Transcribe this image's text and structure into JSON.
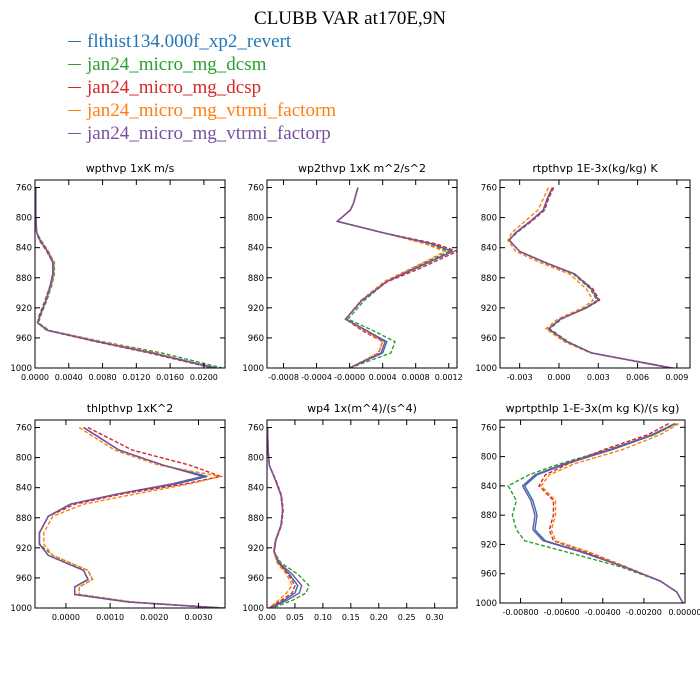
{
  "title": "CLUBB VAR at170E,9N",
  "legend": [
    {
      "label": "flthist134.000f_xp2_revert",
      "color": "#1f77b4"
    },
    {
      "label": "jan24_micro_mg_dcsm",
      "color": "#2ca02c"
    },
    {
      "label": "jan24_micro_mg_dcsp",
      "color": "#d62728"
    },
    {
      "label": "jan24_micro_mg_vtrmi_factorm",
      "color": "#ff7f0e"
    },
    {
      "label": "jan24_micro_mg_vtrmi_factorp",
      "color": "#7b4fa0"
    }
  ],
  "chart_data": [
    {
      "type": "line",
      "title": "wpthvp  1xK m/s",
      "xlim": [
        0,
        0.0225
      ],
      "ylim": [
        750,
        1000
      ],
      "y_reversed": true,
      "xticks": [
        0,
        0.004,
        0.008,
        0.012,
        0.016,
        0.02
      ],
      "xtick_labels": [
        "0.0000",
        "0.0040",
        "0.0080",
        "0.0120",
        "0.0160",
        "0.0200"
      ],
      "yticks": [
        760,
        800,
        840,
        880,
        920,
        960,
        1000
      ],
      "y": [
        760,
        780,
        800,
        820,
        830,
        845,
        860,
        875,
        890,
        910,
        930,
        940,
        950,
        965,
        980,
        1000
      ],
      "series": [
        {
          "color": "#1f77b4",
          "dash": "solid",
          "x": [
            0.0001,
            0.0001,
            0.0001,
            0.0002,
            0.0006,
            0.0015,
            0.0022,
            0.0022,
            0.0019,
            0.0013,
            0.0006,
            0.0003,
            0.0015,
            0.0075,
            0.014,
            0.0215
          ]
        },
        {
          "color": "#2ca02c",
          "dash": "dashed",
          "x": [
            0.0001,
            0.0001,
            0.0001,
            0.0002,
            0.0007,
            0.0016,
            0.0023,
            0.0023,
            0.002,
            0.0014,
            0.0007,
            0.0004,
            0.0017,
            0.008,
            0.015,
            0.0222
          ]
        },
        {
          "color": "#d62728",
          "dash": "dashed",
          "x": [
            0.0001,
            0.0001,
            0.0001,
            0.0002,
            0.0005,
            0.0014,
            0.0021,
            0.0021,
            0.0018,
            0.0012,
            0.0005,
            0.0003,
            0.0014,
            0.0072,
            0.0135,
            0.021
          ]
        },
        {
          "color": "#ff7f0e",
          "dash": "dashed",
          "x": [
            0.0001,
            0.0001,
            0.0001,
            0.0002,
            0.0006,
            0.0016,
            0.0022,
            0.0022,
            0.0019,
            0.0013,
            0.0006,
            0.0003,
            0.0016,
            0.0078,
            0.0142,
            0.0212
          ]
        },
        {
          "color": "#7b4fa0",
          "dash": "solid",
          "x": [
            0.0001,
            0.0001,
            0.0001,
            0.0002,
            0.0006,
            0.0015,
            0.0021,
            0.0021,
            0.0018,
            0.0013,
            0.0006,
            0.0003,
            0.0015,
            0.0074,
            0.0138,
            0.0212
          ]
        }
      ]
    },
    {
      "type": "line",
      "title": "wp2thvp  1xK m^2/s^2",
      "xlim": [
        -0.001,
        0.0013
      ],
      "ylim": [
        750,
        1000
      ],
      "y_reversed": true,
      "xticks": [
        -0.0008,
        -0.0004,
        0,
        0.0004,
        0.0008,
        0.0012
      ],
      "xtick_labels": [
        "-0.0008",
        "-0.0004",
        "-0.0000",
        "0.0004",
        "0.0008",
        "0.0012"
      ],
      "yticks": [
        760,
        800,
        840,
        880,
        920,
        960,
        1000
      ],
      "y": [
        760,
        780,
        790,
        805,
        820,
        835,
        845,
        855,
        870,
        885,
        910,
        935,
        950,
        965,
        980,
        1000
      ],
      "series": [
        {
          "color": "#1f77b4",
          "dash": "solid",
          "x": [
            0.0001,
            5e-05,
            1e-05,
            -0.00015,
            0.0004,
            0.001,
            0.00125,
            0.00105,
            0.00075,
            0.00045,
            0.00015,
            -5e-05,
            0.0002,
            0.00045,
            0.0004,
            0.0
          ]
        },
        {
          "color": "#2ca02c",
          "dash": "dashed",
          "x": [
            0.0001,
            5e-05,
            1e-05,
            -0.00015,
            0.0004,
            0.00095,
            0.0012,
            0.001,
            0.00072,
            0.00045,
            0.00018,
            -2e-05,
            0.00028,
            0.00055,
            0.0005,
            0.0
          ]
        },
        {
          "color": "#d62728",
          "dash": "dashed",
          "x": [
            0.0001,
            5e-05,
            1e-05,
            -0.00015,
            0.0004,
            0.00105,
            0.0013,
            0.0011,
            0.0008,
            0.00046,
            0.00014,
            -5e-05,
            0.00015,
            0.0004,
            0.00035,
            0.0
          ]
        },
        {
          "color": "#ff7f0e",
          "dash": "dashed",
          "x": [
            0.0001,
            5e-05,
            1e-05,
            -0.00015,
            0.0004,
            0.00092,
            0.00115,
            0.00098,
            0.0007,
            0.00042,
            0.00014,
            -5e-05,
            0.00018,
            0.0004,
            0.00035,
            0.0
          ]
        },
        {
          "color": "#7b4fa0",
          "dash": "solid",
          "x": [
            0.0001,
            5e-05,
            1e-05,
            -0.00015,
            0.0004,
            0.001,
            0.00124,
            0.00104,
            0.00074,
            0.00045,
            0.00015,
            -5e-05,
            0.0002,
            0.00043,
            0.00038,
            0.0
          ]
        }
      ]
    },
    {
      "type": "line",
      "title": "rtpthvp  1E-3x(kg/kg) K",
      "xlim": [
        -0.0045,
        0.01
      ],
      "ylim": [
        750,
        1000
      ],
      "y_reversed": true,
      "xticks": [
        -0.003,
        0,
        0.003,
        0.006,
        0.009
      ],
      "xtick_labels": [
        "-0.003",
        "0.000",
        "0.003",
        "0.006",
        "0.009"
      ],
      "yticks": [
        760,
        800,
        840,
        880,
        920,
        960,
        1000
      ],
      "y": [
        760,
        775,
        790,
        805,
        820,
        830,
        845,
        860,
        875,
        895,
        910,
        920,
        935,
        948,
        965,
        980,
        1000
      ],
      "series": [
        {
          "color": "#1f77b4",
          "dash": "solid",
          "x": [
            -0.0005,
            -0.0009,
            -0.0012,
            -0.0022,
            -0.0033,
            -0.0038,
            -0.003,
            -0.001,
            0.0012,
            0.0025,
            0.003,
            0.0021,
            0.0001,
            -0.0008,
            0.0006,
            0.0025,
            0.0085
          ]
        },
        {
          "color": "#2ca02c",
          "dash": "dashed",
          "x": [
            -0.0005,
            -0.0008,
            -0.0011,
            -0.0021,
            -0.0032,
            -0.0038,
            -0.003,
            -0.0011,
            0.0011,
            0.0024,
            0.0029,
            0.002,
            0.0002,
            -0.0007,
            0.0007,
            0.0025,
            0.0086
          ]
        },
        {
          "color": "#d62728",
          "dash": "dashed",
          "x": [
            -0.0004,
            -0.0008,
            -0.0011,
            -0.0021,
            -0.0033,
            -0.0038,
            -0.003,
            -0.001,
            0.0012,
            0.0026,
            0.0031,
            0.0021,
            0.0001,
            -0.0008,
            0.0006,
            0.0025,
            0.0087
          ]
        },
        {
          "color": "#ff7f0e",
          "dash": "dashed",
          "x": [
            -0.0008,
            -0.0012,
            -0.0016,
            -0.0026,
            -0.0036,
            -0.0039,
            -0.0033,
            -0.0014,
            0.0008,
            0.0021,
            0.0026,
            0.0018,
            -0.0001,
            -0.001,
            0.0004,
            0.0024,
            0.0085
          ]
        },
        {
          "color": "#7b4fa0",
          "dash": "solid",
          "x": [
            -0.0005,
            -0.0009,
            -0.0012,
            -0.0022,
            -0.0033,
            -0.0038,
            -0.003,
            -0.001,
            0.0012,
            0.0025,
            0.003,
            0.0021,
            0.0001,
            -0.0008,
            0.0006,
            0.0025,
            0.0086
          ]
        }
      ]
    },
    {
      "type": "line",
      "title": "thlpthvp  1xK^2",
      "xlim": [
        -0.0007,
        0.0036
      ],
      "ylim": [
        750,
        1000
      ],
      "y_reversed": true,
      "xticks": [
        0,
        0.001,
        0.002,
        0.003
      ],
      "xtick_labels": [
        "0.0000",
        "0.0010",
        "0.0020",
        "0.0030"
      ],
      "yticks": [
        760,
        800,
        840,
        880,
        920,
        960,
        1000
      ],
      "y": [
        760,
        790,
        810,
        825,
        835,
        848,
        862,
        878,
        900,
        915,
        930,
        950,
        962,
        972,
        982,
        992,
        1000
      ],
      "series": [
        {
          "color": "#1f77b4",
          "dash": "solid",
          "x": [
            0.0004,
            0.0012,
            0.0022,
            0.0032,
            0.0025,
            0.0012,
            0.0001,
            -0.0004,
            -0.0006,
            -0.0006,
            -0.0004,
            0.0004,
            0.0005,
            0.0002,
            0.0002,
            0.0014,
            0.0035
          ]
        },
        {
          "color": "#2ca02c",
          "dash": "dashed",
          "x": [
            0.0004,
            0.0012,
            0.0022,
            0.0031,
            0.0024,
            0.0012,
            0.0001,
            -0.0004,
            -0.0006,
            -0.0006,
            -0.0003,
            0.0005,
            0.0006,
            0.0003,
            0.0003,
            0.0015,
            0.0036
          ]
        },
        {
          "color": "#d62728",
          "dash": "dashed",
          "x": [
            0.0005,
            0.0015,
            0.0028,
            0.0035,
            0.0027,
            0.0013,
            0.0002,
            -0.0004,
            -0.0006,
            -0.0006,
            -0.0004,
            0.0004,
            0.0005,
            0.0002,
            0.0002,
            0.0014,
            0.0035
          ]
        },
        {
          "color": "#ff7f0e",
          "dash": "dashed",
          "x": [
            0.0003,
            0.0011,
            0.0021,
            0.0035,
            0.0028,
            0.0016,
            0.0004,
            -0.0003,
            -0.0005,
            -0.0005,
            -0.0003,
            0.0005,
            0.0006,
            0.0003,
            0.0003,
            0.0015,
            0.0035
          ]
        },
        {
          "color": "#7b4fa0",
          "dash": "solid",
          "x": [
            0.0004,
            0.0012,
            0.0022,
            0.0031,
            0.0024,
            0.0012,
            0.0001,
            -0.0004,
            -0.0006,
            -0.0006,
            -0.0004,
            0.0004,
            0.0005,
            0.0002,
            0.0002,
            0.0014,
            0.0035
          ]
        }
      ]
    },
    {
      "type": "line",
      "title": "wp4  1x(m^4)/(s^4)",
      "xlim": [
        0,
        0.34
      ],
      "ylim": [
        750,
        1000
      ],
      "y_reversed": true,
      "xticks": [
        0,
        0.05,
        0.1,
        0.15,
        0.2,
        0.25,
        0.3
      ],
      "xtick_labels": [
        "0.00",
        "0.05",
        "0.10",
        "0.15",
        "0.20",
        "0.25",
        "0.30"
      ],
      "yticks": [
        760,
        800,
        840,
        880,
        920,
        960,
        1000
      ],
      "y": [
        760,
        790,
        810,
        830,
        850,
        870,
        890,
        910,
        925,
        940,
        955,
        970,
        980,
        990,
        1000
      ],
      "series": [
        {
          "color": "#1f77b4",
          "dash": "solid",
          "x": [
            0.001,
            0.002,
            0.004,
            0.015,
            0.025,
            0.028,
            0.025,
            0.015,
            0.012,
            0.02,
            0.04,
            0.055,
            0.05,
            0.03,
            0.005
          ]
        },
        {
          "color": "#2ca02c",
          "dash": "dashed",
          "x": [
            0.001,
            0.002,
            0.004,
            0.015,
            0.025,
            0.028,
            0.025,
            0.015,
            0.012,
            0.025,
            0.055,
            0.075,
            0.07,
            0.045,
            0.01
          ]
        },
        {
          "color": "#d62728",
          "dash": "dashed",
          "x": [
            0.001,
            0.002,
            0.004,
            0.016,
            0.026,
            0.029,
            0.026,
            0.016,
            0.013,
            0.02,
            0.038,
            0.05,
            0.045,
            0.025,
            0.004
          ]
        },
        {
          "color": "#ff7f0e",
          "dash": "dashed",
          "x": [
            0.001,
            0.002,
            0.004,
            0.015,
            0.025,
            0.028,
            0.025,
            0.015,
            0.012,
            0.018,
            0.035,
            0.045,
            0.035,
            0.02,
            0.003
          ]
        },
        {
          "color": "#7b4fa0",
          "dash": "solid",
          "x": [
            0.001,
            0.002,
            0.004,
            0.015,
            0.025,
            0.028,
            0.025,
            0.016,
            0.013,
            0.022,
            0.045,
            0.062,
            0.058,
            0.035,
            0.006
          ]
        }
      ]
    },
    {
      "type": "line",
      "title": "wprtpthlp  1-E-3x(m kg K)/(s kg)",
      "xlim": [
        -0.009,
        0.0
      ],
      "ylim": [
        750,
        1000
      ],
      "y_reversed": true,
      "xticks": [
        -0.008,
        -0.006,
        -0.004,
        -0.002,
        0
      ],
      "xtick_labels": [
        "-0.00800",
        "-0.00600",
        "-0.00400",
        "-0.00200",
        "0.00000"
      ],
      "yticks": [
        760,
        800,
        840,
        880,
        920,
        960,
        1000
      ],
      "y": [
        755,
        770,
        790,
        810,
        825,
        840,
        860,
        880,
        900,
        915,
        930,
        950,
        970,
        985,
        1000
      ],
      "series": [
        {
          "color": "#1f77b4",
          "dash": "solid",
          "x": [
            -0.0005,
            -0.0015,
            -0.0035,
            -0.0058,
            -0.0072,
            -0.0078,
            -0.0074,
            -0.0072,
            -0.0073,
            -0.0068,
            -0.005,
            -0.003,
            -0.0012,
            -0.0004,
            -0.0001
          ]
        },
        {
          "color": "#2ca02c",
          "dash": "dashed",
          "x": [
            -0.0004,
            -0.0015,
            -0.0037,
            -0.0061,
            -0.0076,
            -0.0086,
            -0.0082,
            -0.0084,
            -0.0082,
            -0.0078,
            -0.0058,
            -0.0032,
            -0.0012,
            -0.0004,
            -0.0001
          ]
        },
        {
          "color": "#d62728",
          "dash": "dashed",
          "x": [
            -0.0008,
            -0.0018,
            -0.0039,
            -0.0057,
            -0.0068,
            -0.0071,
            -0.0064,
            -0.0064,
            -0.0066,
            -0.0064,
            -0.0048,
            -0.003,
            -0.0012,
            -0.0004,
            -0.0001
          ]
        },
        {
          "color": "#ff7f0e",
          "dash": "dashed",
          "x": [
            -0.0003,
            -0.0012,
            -0.003,
            -0.0054,
            -0.0066,
            -0.007,
            -0.0063,
            -0.0063,
            -0.0065,
            -0.0063,
            -0.0047,
            -0.0029,
            -0.0012,
            -0.0004,
            -0.0001
          ]
        },
        {
          "color": "#7b4fa0",
          "dash": "solid",
          "x": [
            -0.0005,
            -0.0016,
            -0.0036,
            -0.0059,
            -0.0073,
            -0.0079,
            -0.0075,
            -0.0073,
            -0.0074,
            -0.0069,
            -0.0051,
            -0.003,
            -0.0012,
            -0.0004,
            -0.0001
          ]
        }
      ]
    }
  ]
}
